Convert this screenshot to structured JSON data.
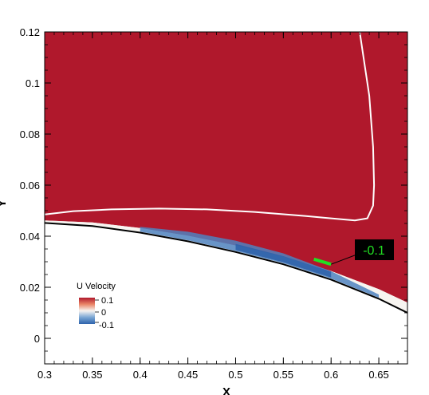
{
  "chart_data": {
    "type": "contour",
    "title": "",
    "xlabel": "X",
    "ylabel": "Y",
    "xlim": [
      0.3,
      0.68
    ],
    "ylim": [
      -0.01,
      0.12
    ],
    "x_ticks": [
      "0.3",
      "0.35",
      "0.4",
      "0.45",
      "0.5",
      "0.55",
      "0.6",
      "0.65"
    ],
    "y_ticks": [
      "0",
      "0.02",
      "0.04",
      "0.06",
      "0.08",
      "0.1",
      "0.12"
    ],
    "field": {
      "variable": "U Velocity",
      "levels": [
        "0.1",
        "0",
        "-0.1"
      ],
      "colors": {
        "high": "#b0182c",
        "zero": "#f7f4f0",
        "low": "#3b6eb0",
        "wall_line": "#000000",
        "contour_line": "#ffffff",
        "annot": "#22e022"
      }
    },
    "wall_surface": [
      [
        0.3,
        0.0452
      ],
      [
        0.35,
        0.044
      ],
      [
        0.4,
        0.0414
      ],
      [
        0.45,
        0.038
      ],
      [
        0.5,
        0.0338
      ],
      [
        0.55,
        0.029
      ],
      [
        0.6,
        0.023
      ],
      [
        0.65,
        0.0155
      ],
      [
        0.68,
        0.01
      ]
    ],
    "white_contour": [
      [
        0.3,
        0.0485
      ],
      [
        0.33,
        0.0498
      ],
      [
        0.37,
        0.0505
      ],
      [
        0.42,
        0.0508
      ],
      [
        0.47,
        0.0505
      ],
      [
        0.52,
        0.0495
      ],
      [
        0.57,
        0.048
      ],
      [
        0.6,
        0.047
      ],
      [
        0.625,
        0.0462
      ],
      [
        0.638,
        0.047
      ],
      [
        0.644,
        0.052
      ],
      [
        0.645,
        0.06
      ],
      [
        0.644,
        0.075
      ],
      [
        0.64,
        0.095
      ],
      [
        0.634,
        0.11
      ],
      [
        0.63,
        0.12
      ]
    ],
    "annotation": {
      "label": "-0.1",
      "x": 0.59,
      "y": 0.03
    },
    "legend": {
      "title": "U Velocity",
      "entries": [
        "0.1",
        "0",
        "-0.1"
      ],
      "placement": "lower-left"
    }
  }
}
